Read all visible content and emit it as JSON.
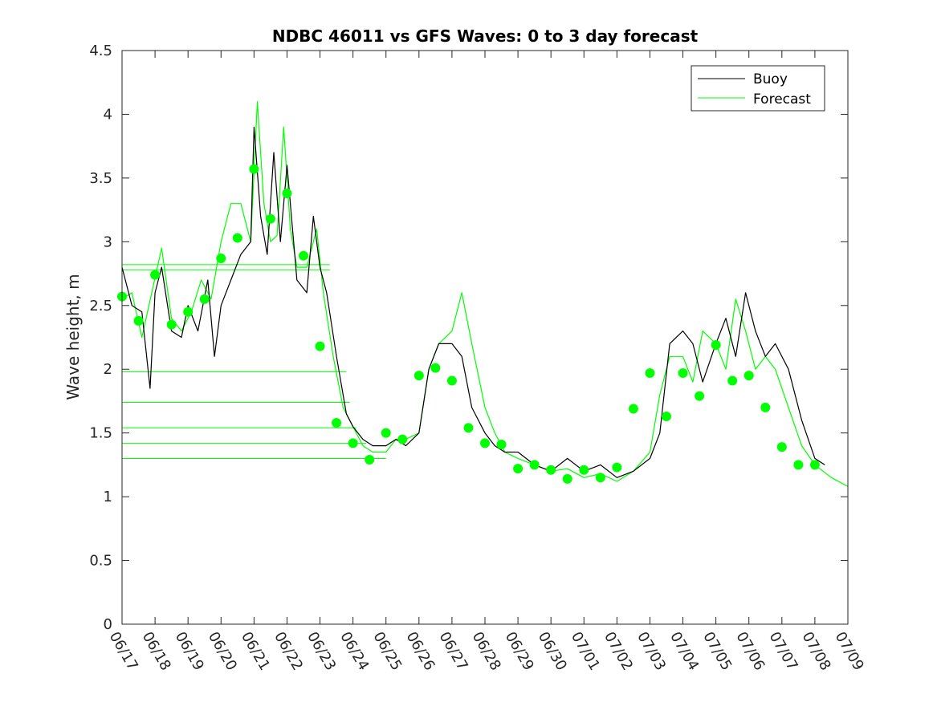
{
  "chart_data": {
    "type": "line",
    "title": "NDBC 46011 vs GFS Waves: 0 to 3 day forecast",
    "ylabel": "Wave height, m",
    "xlabel": "",
    "xlim": [
      0,
      22
    ],
    "ylim": [
      0,
      4.5
    ],
    "yticks": [
      0,
      0.5,
      1,
      1.5,
      2,
      2.5,
      3,
      3.5,
      4,
      4.5
    ],
    "ytick_labels": [
      "0",
      "0.5",
      "1",
      "1.5",
      "2",
      "2.5",
      "3",
      "3.5",
      "4",
      "4.5"
    ],
    "xtick_labels": [
      "06/17",
      "06/18",
      "06/19",
      "06/20",
      "06/21",
      "06/22",
      "06/23",
      "06/24",
      "06/25",
      "06/26",
      "06/27",
      "06/28",
      "06/29",
      "06/30",
      "07/01",
      "07/02",
      "07/03",
      "07/04",
      "07/05",
      "07/06",
      "07/07",
      "07/08",
      "07/09"
    ],
    "legend_position": "top-right",
    "grid": false,
    "colors": {
      "buoy": "#000000",
      "forecast": "#00ff00",
      "axis": "#262626"
    },
    "series": [
      {
        "name": "Buoy",
        "kind": "line",
        "x": [
          0,
          0.3,
          0.6,
          0.85,
          1.0,
          1.2,
          1.5,
          1.8,
          2.0,
          2.3,
          2.6,
          2.8,
          3.0,
          3.3,
          3.6,
          3.9,
          4.0,
          4.2,
          4.4,
          4.6,
          4.8,
          5.0,
          5.3,
          5.6,
          5.8,
          6.0,
          6.2,
          6.5,
          6.8,
          7.0,
          7.3,
          7.6,
          8.0,
          8.3,
          8.6,
          9.0,
          9.3,
          9.6,
          10.0,
          10.3,
          10.6,
          11.0,
          11.3,
          11.6,
          12.0,
          12.5,
          13.0,
          13.5,
          14.0,
          14.5,
          15.0,
          15.5,
          16.0,
          16.3,
          16.6,
          17.0,
          17.3,
          17.6,
          18.0,
          18.3,
          18.6,
          18.9,
          19.2,
          19.5,
          19.8,
          20.2,
          20.6,
          21.0,
          21.3
        ],
        "y": [
          2.8,
          2.5,
          2.45,
          1.85,
          2.6,
          2.8,
          2.3,
          2.25,
          2.5,
          2.3,
          2.7,
          2.1,
          2.5,
          2.7,
          2.9,
          3.0,
          3.9,
          3.2,
          2.9,
          3.7,
          3.0,
          3.6,
          2.7,
          2.6,
          3.2,
          2.8,
          2.6,
          2.1,
          1.65,
          1.55,
          1.45,
          1.4,
          1.4,
          1.45,
          1.4,
          1.5,
          2.0,
          2.2,
          2.2,
          2.1,
          1.7,
          1.5,
          1.4,
          1.35,
          1.35,
          1.25,
          1.2,
          1.3,
          1.2,
          1.25,
          1.15,
          1.2,
          1.3,
          1.5,
          2.2,
          2.3,
          2.2,
          1.9,
          2.2,
          2.4,
          2.1,
          2.6,
          2.3,
          2.1,
          2.2,
          2.0,
          1.6,
          1.3,
          1.25
        ]
      },
      {
        "name": "Forecast",
        "kind": "line",
        "x": [
          0,
          0.3,
          0.6,
          0.9,
          1.2,
          1.5,
          1.8,
          2.1,
          2.4,
          2.7,
          3.0,
          3.3,
          3.6,
          3.9,
          4.1,
          4.3,
          4.5,
          4.7,
          4.9,
          5.1,
          5.3,
          5.6,
          5.9,
          6.1,
          6.4,
          6.7,
          7.0,
          7.3,
          7.6,
          8.0,
          8.3,
          8.6,
          9.0,
          9.3,
          9.6,
          10.0,
          10.3,
          10.6,
          11.0,
          11.3,
          11.6,
          12.0,
          12.5,
          13.0,
          13.5,
          14.0,
          14.5,
          15.0,
          15.5,
          16.0,
          16.3,
          16.6,
          17.0,
          17.3,
          17.6,
          18.0,
          18.3,
          18.6,
          18.9,
          19.2,
          19.5,
          19.8,
          20.2,
          20.6,
          21.0,
          21.5,
          22.0
        ],
        "y": [
          2.55,
          2.6,
          2.25,
          2.6,
          2.95,
          2.4,
          2.3,
          2.45,
          2.7,
          2.55,
          3.0,
          3.3,
          3.3,
          3.0,
          4.1,
          3.3,
          3.0,
          3.05,
          3.9,
          3.1,
          2.8,
          2.8,
          3.1,
          2.6,
          2.1,
          1.7,
          1.55,
          1.4,
          1.35,
          1.35,
          1.45,
          1.45,
          1.5,
          2.0,
          2.2,
          2.3,
          2.6,
          2.2,
          1.7,
          1.5,
          1.35,
          1.3,
          1.25,
          1.2,
          1.22,
          1.15,
          1.18,
          1.12,
          1.2,
          1.35,
          1.8,
          2.1,
          2.1,
          1.9,
          2.3,
          2.2,
          2.0,
          2.55,
          2.3,
          2.0,
          2.1,
          2.0,
          1.7,
          1.4,
          1.25,
          1.15,
          1.08
        ]
      },
      {
        "name": "",
        "kind": "points",
        "x": [
          0,
          0.5,
          1.0,
          1.5,
          2.0,
          2.5,
          3.0,
          3.5,
          4.0,
          4.5,
          5.0,
          5.5,
          6.0,
          6.5,
          7.0,
          7.5,
          8.0,
          8.5,
          9.0,
          9.5,
          10.0,
          10.5,
          11.0,
          11.5,
          12.0,
          12.5,
          13.0,
          13.5,
          14.0,
          14.5,
          15.0,
          15.5,
          16.0,
          16.5,
          17.0,
          17.5,
          18.0,
          18.5,
          19.0,
          19.5,
          20.0,
          20.5,
          21.0
        ],
        "y": [
          2.57,
          2.38,
          2.74,
          2.35,
          2.45,
          2.55,
          2.87,
          3.03,
          3.57,
          3.18,
          3.38,
          2.89,
          2.18,
          1.58,
          1.42,
          1.29,
          1.5,
          1.45,
          1.95,
          2.01,
          1.91,
          1.54,
          1.42,
          1.41,
          1.22,
          1.25,
          1.21,
          1.14,
          1.21,
          1.15,
          1.23,
          1.69,
          1.97,
          1.63,
          1.97,
          1.79,
          2.19,
          1.91,
          1.95,
          1.7,
          1.39,
          1.25,
          1.25
        ]
      }
    ],
    "reference_lines": [
      {
        "y": 2.82,
        "x_end": 6.3
      },
      {
        "y": 2.78,
        "x_end": 6.3
      },
      {
        "y": 1.98,
        "x_end": 6.8
      },
      {
        "y": 1.74,
        "x_end": 6.9
      },
      {
        "y": 1.54,
        "x_end": 7.1
      },
      {
        "y": 1.42,
        "x_end": 7.4
      },
      {
        "y": 1.3,
        "x_end": 8.0
      }
    ]
  }
}
